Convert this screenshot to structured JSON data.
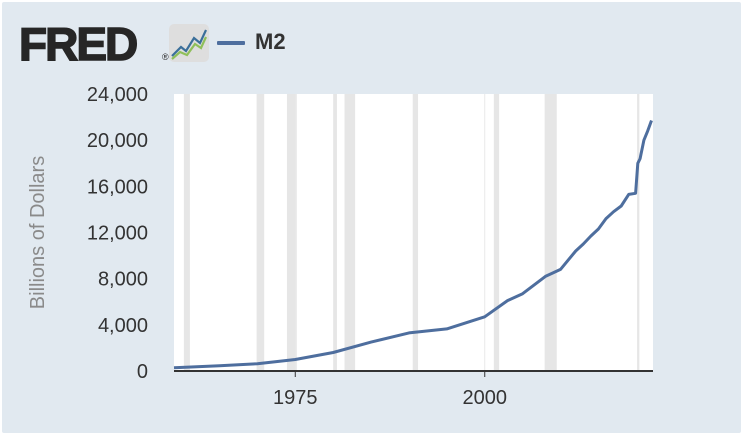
{
  "header": {
    "logo_text": "FRED",
    "logo_mark": "®",
    "logo_icon": "line-graph-icon",
    "legend_series": "M2",
    "legend_color": "#4e6e9e"
  },
  "colors": {
    "background": "#e1e9f0",
    "plot_area": "#ffffff",
    "recession": "#e6e6e6",
    "line": "#4e6e9e"
  },
  "chart_data": {
    "type": "line",
    "title": "",
    "xlabel": "",
    "ylabel": "Billions of Dollars",
    "xlim": [
      1959,
      2022.2
    ],
    "ylim": [
      0,
      24000
    ],
    "yticks": [
      0,
      4000,
      8000,
      12000,
      16000,
      20000,
      24000
    ],
    "ytick_labels": [
      "0",
      "4,000",
      "8,000",
      "12,000",
      "16,000",
      "20,000",
      "24,000"
    ],
    "xticks": [
      1975,
      2000
    ],
    "xtick_labels": [
      "1975",
      "2000"
    ],
    "grid": "vertical",
    "recessions": [
      [
        1960.3,
        1961.1
      ],
      [
        1969.9,
        1970.9
      ],
      [
        1973.9,
        1975.2
      ],
      [
        1980.0,
        1980.5
      ],
      [
        1981.5,
        1982.9
      ],
      [
        1990.5,
        1991.2
      ],
      [
        2001.2,
        2001.9
      ],
      [
        2007.9,
        2009.5
      ],
      [
        2020.1,
        2020.4
      ]
    ],
    "series": [
      {
        "name": "M2",
        "x": [
          1959,
          1965,
          1970,
          1975,
          1980,
          1985,
          1990,
          1995,
          2000,
          2003,
          2005,
          2008,
          2009,
          2010,
          2011,
          2012,
          2013,
          2014,
          2015,
          2016,
          2017,
          2018,
          2019,
          2019.9,
          2020.2,
          2020.5,
          2021,
          2021.5,
          2022
        ],
        "y": [
          290,
          460,
          630,
          1000,
          1600,
          2500,
          3300,
          3650,
          4700,
          6100,
          6700,
          8200,
          8500,
          8800,
          9600,
          10400,
          11000,
          11700,
          12300,
          13200,
          13800,
          14300,
          15300,
          15400,
          18000,
          18400,
          20000,
          20800,
          21700
        ]
      }
    ]
  }
}
